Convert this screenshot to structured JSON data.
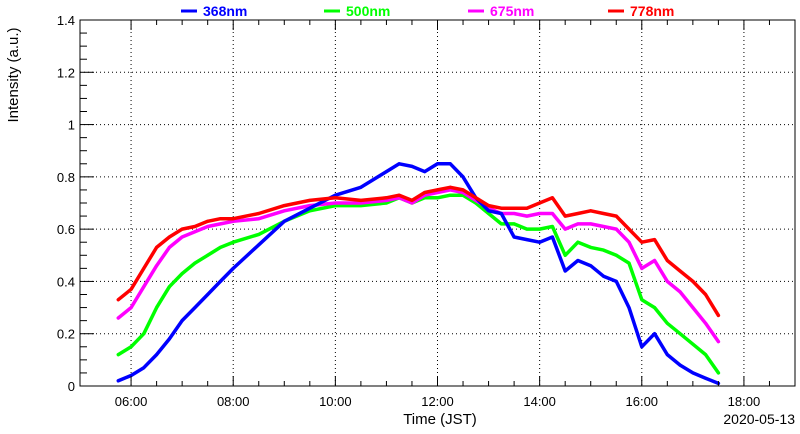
{
  "chart_data": {
    "type": "line",
    "title": "",
    "xlabel": "Time (JST)",
    "ylabel": "Intensity (a.u.)",
    "date_label": "2020-05-13",
    "x_unit": "hour of day (JST)",
    "xlim": [
      5.0,
      19.0
    ],
    "ylim": [
      0,
      1.4
    ],
    "x_ticks": [
      "06:00",
      "08:00",
      "10:00",
      "12:00",
      "14:00",
      "16:00",
      "18:00"
    ],
    "y_ticks": [
      "0",
      "0.2",
      "0.4",
      "0.6",
      "0.8",
      "1",
      "1.2",
      "1.4"
    ],
    "grid": true,
    "legend_position": "top",
    "series": [
      {
        "name": "368nm",
        "color": "#0000ff",
        "x": [
          5.75,
          6.0,
          6.25,
          6.5,
          6.75,
          7.0,
          7.25,
          7.5,
          7.75,
          8.0,
          8.5,
          9.0,
          9.5,
          10.0,
          10.5,
          11.0,
          11.25,
          11.5,
          11.75,
          12.0,
          12.25,
          12.5,
          12.75,
          13.0,
          13.25,
          13.5,
          13.75,
          14.0,
          14.25,
          14.5,
          14.75,
          15.0,
          15.25,
          15.5,
          15.75,
          16.0,
          16.25,
          16.5,
          16.75,
          17.0,
          17.25,
          17.5
        ],
        "y": [
          0.02,
          0.04,
          0.07,
          0.12,
          0.18,
          0.25,
          0.3,
          0.35,
          0.4,
          0.45,
          0.54,
          0.63,
          0.68,
          0.73,
          0.76,
          0.82,
          0.85,
          0.84,
          0.82,
          0.85,
          0.85,
          0.8,
          0.72,
          0.67,
          0.66,
          0.57,
          0.56,
          0.55,
          0.57,
          0.44,
          0.48,
          0.46,
          0.42,
          0.4,
          0.3,
          0.15,
          0.2,
          0.12,
          0.08,
          0.05,
          0.03,
          0.01
        ]
      },
      {
        "name": "500nm",
        "color": "#00ff00",
        "x": [
          5.75,
          6.0,
          6.25,
          6.5,
          6.75,
          7.0,
          7.25,
          7.5,
          7.75,
          8.0,
          8.5,
          9.0,
          9.5,
          10.0,
          10.5,
          11.0,
          11.25,
          11.5,
          11.75,
          12.0,
          12.25,
          12.5,
          12.75,
          13.0,
          13.25,
          13.5,
          13.75,
          14.0,
          14.25,
          14.5,
          14.75,
          15.0,
          15.25,
          15.5,
          15.75,
          16.0,
          16.25,
          16.5,
          16.75,
          17.0,
          17.25,
          17.5
        ],
        "y": [
          0.12,
          0.15,
          0.2,
          0.3,
          0.38,
          0.43,
          0.47,
          0.5,
          0.53,
          0.55,
          0.58,
          0.63,
          0.67,
          0.69,
          0.69,
          0.7,
          0.72,
          0.7,
          0.72,
          0.72,
          0.73,
          0.73,
          0.7,
          0.66,
          0.62,
          0.62,
          0.6,
          0.6,
          0.61,
          0.5,
          0.55,
          0.53,
          0.52,
          0.5,
          0.47,
          0.33,
          0.3,
          0.24,
          0.2,
          0.16,
          0.12,
          0.05
        ]
      },
      {
        "name": "675nm",
        "color": "#ff00ff",
        "x": [
          5.75,
          6.0,
          6.25,
          6.5,
          6.75,
          7.0,
          7.25,
          7.5,
          7.75,
          8.0,
          8.5,
          9.0,
          9.5,
          10.0,
          10.5,
          11.0,
          11.25,
          11.5,
          11.75,
          12.0,
          12.25,
          12.5,
          12.75,
          13.0,
          13.25,
          13.5,
          13.75,
          14.0,
          14.25,
          14.5,
          14.75,
          15.0,
          15.25,
          15.5,
          15.75,
          16.0,
          16.25,
          16.5,
          16.75,
          17.0,
          17.25,
          17.5
        ],
        "y": [
          0.26,
          0.3,
          0.38,
          0.46,
          0.53,
          0.57,
          0.59,
          0.61,
          0.62,
          0.63,
          0.64,
          0.67,
          0.69,
          0.7,
          0.7,
          0.71,
          0.72,
          0.7,
          0.73,
          0.74,
          0.75,
          0.74,
          0.71,
          0.68,
          0.66,
          0.66,
          0.65,
          0.66,
          0.66,
          0.6,
          0.62,
          0.62,
          0.61,
          0.6,
          0.55,
          0.45,
          0.48,
          0.4,
          0.36,
          0.3,
          0.24,
          0.17
        ]
      },
      {
        "name": "778nm",
        "color": "#ff0000",
        "x": [
          5.75,
          6.0,
          6.25,
          6.5,
          6.75,
          7.0,
          7.25,
          7.5,
          7.75,
          8.0,
          8.5,
          9.0,
          9.5,
          10.0,
          10.5,
          11.0,
          11.25,
          11.5,
          11.75,
          12.0,
          12.25,
          12.5,
          12.75,
          13.0,
          13.25,
          13.5,
          13.75,
          14.0,
          14.25,
          14.5,
          14.75,
          15.0,
          15.25,
          15.5,
          15.75,
          16.0,
          16.25,
          16.5,
          16.75,
          17.0,
          17.25,
          17.5
        ],
        "y": [
          0.33,
          0.37,
          0.45,
          0.53,
          0.57,
          0.6,
          0.61,
          0.63,
          0.64,
          0.64,
          0.66,
          0.69,
          0.71,
          0.72,
          0.71,
          0.72,
          0.73,
          0.71,
          0.74,
          0.75,
          0.76,
          0.75,
          0.72,
          0.69,
          0.68,
          0.68,
          0.68,
          0.7,
          0.72,
          0.65,
          0.66,
          0.67,
          0.66,
          0.65,
          0.6,
          0.55,
          0.56,
          0.48,
          0.44,
          0.4,
          0.35,
          0.27
        ]
      }
    ]
  }
}
